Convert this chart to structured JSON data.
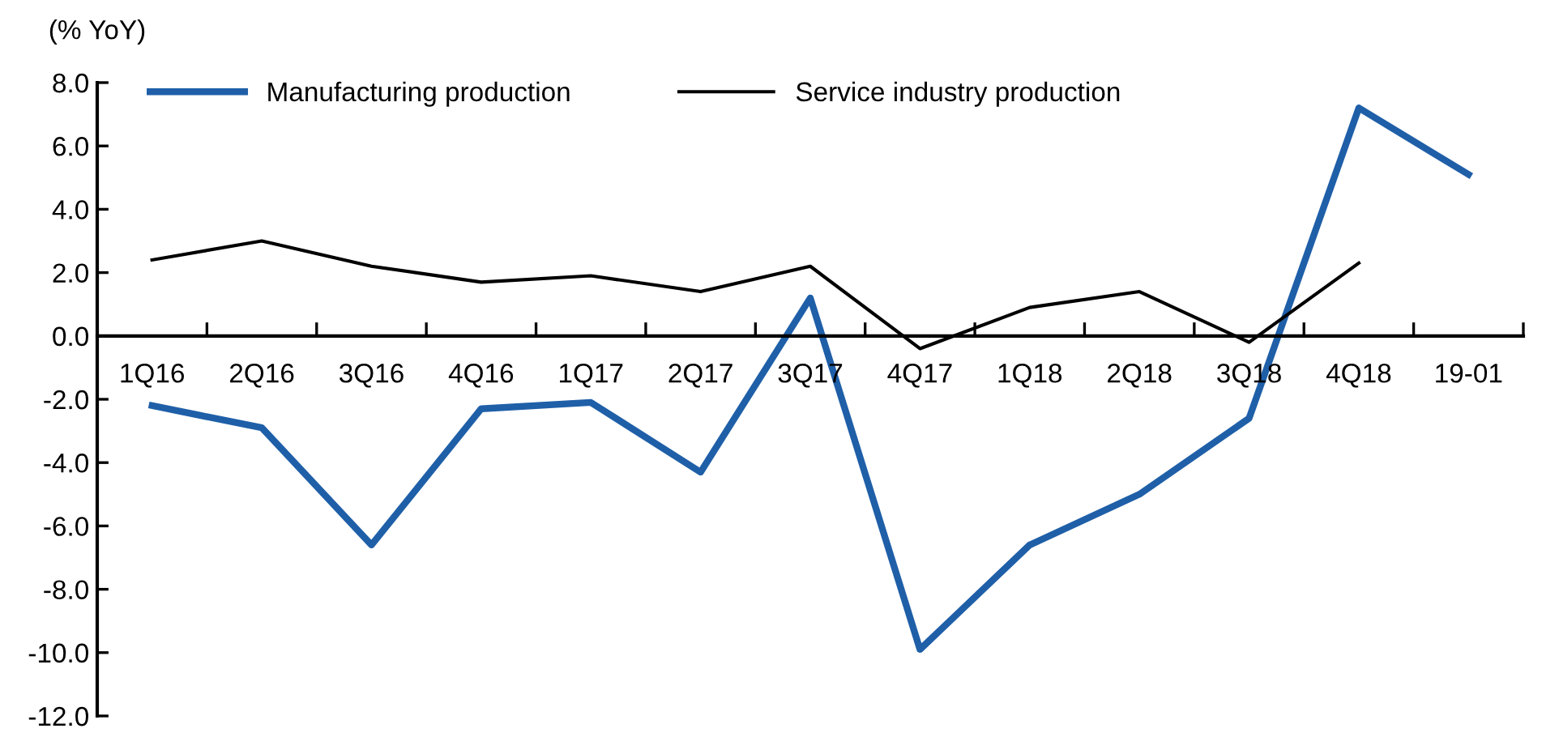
{
  "chart_data": {
    "type": "line",
    "ylabel": "(% YoY)",
    "categories": [
      "1Q16",
      "2Q16",
      "3Q16",
      "4Q16",
      "1Q17",
      "2Q17",
      "3Q17",
      "4Q17",
      "1Q18",
      "2Q18",
      "3Q18",
      "4Q18",
      "19-01"
    ],
    "series": [
      {
        "name": "Manufacturing production",
        "color": "#1f5fa8",
        "values": [
          -2.2,
          -2.9,
          -6.6,
          -2.3,
          -2.1,
          -4.3,
          1.2,
          -9.9,
          -6.6,
          -5.0,
          -2.6,
          7.2,
          5.1
        ]
      },
      {
        "name": "Service industry production",
        "color": "#000000",
        "values": [
          2.4,
          3.0,
          2.2,
          1.7,
          1.9,
          1.4,
          2.2,
          -0.4,
          0.9,
          1.4,
          -0.2,
          2.3,
          null
        ]
      }
    ],
    "ylim": [
      -12,
      8
    ],
    "yticks": [
      {
        "value": -12,
        "label": "-12.0"
      },
      {
        "value": -10,
        "label": "-10.0"
      },
      {
        "value": -8,
        "label": "-8.0"
      },
      {
        "value": -6,
        "label": "-6.0"
      },
      {
        "value": -4,
        "label": "-4.0"
      },
      {
        "value": -2,
        "label": "-2.0"
      },
      {
        "value": 0,
        "label": "0.0"
      },
      {
        "value": 2,
        "label": "2.0"
      },
      {
        "value": 4,
        "label": "4.0"
      },
      {
        "value": 6,
        "label": "6.0"
      },
      {
        "value": 8,
        "label": "8.0"
      }
    ],
    "grid": false,
    "legend": "top",
    "marker": "none",
    "line_style": "solid"
  }
}
